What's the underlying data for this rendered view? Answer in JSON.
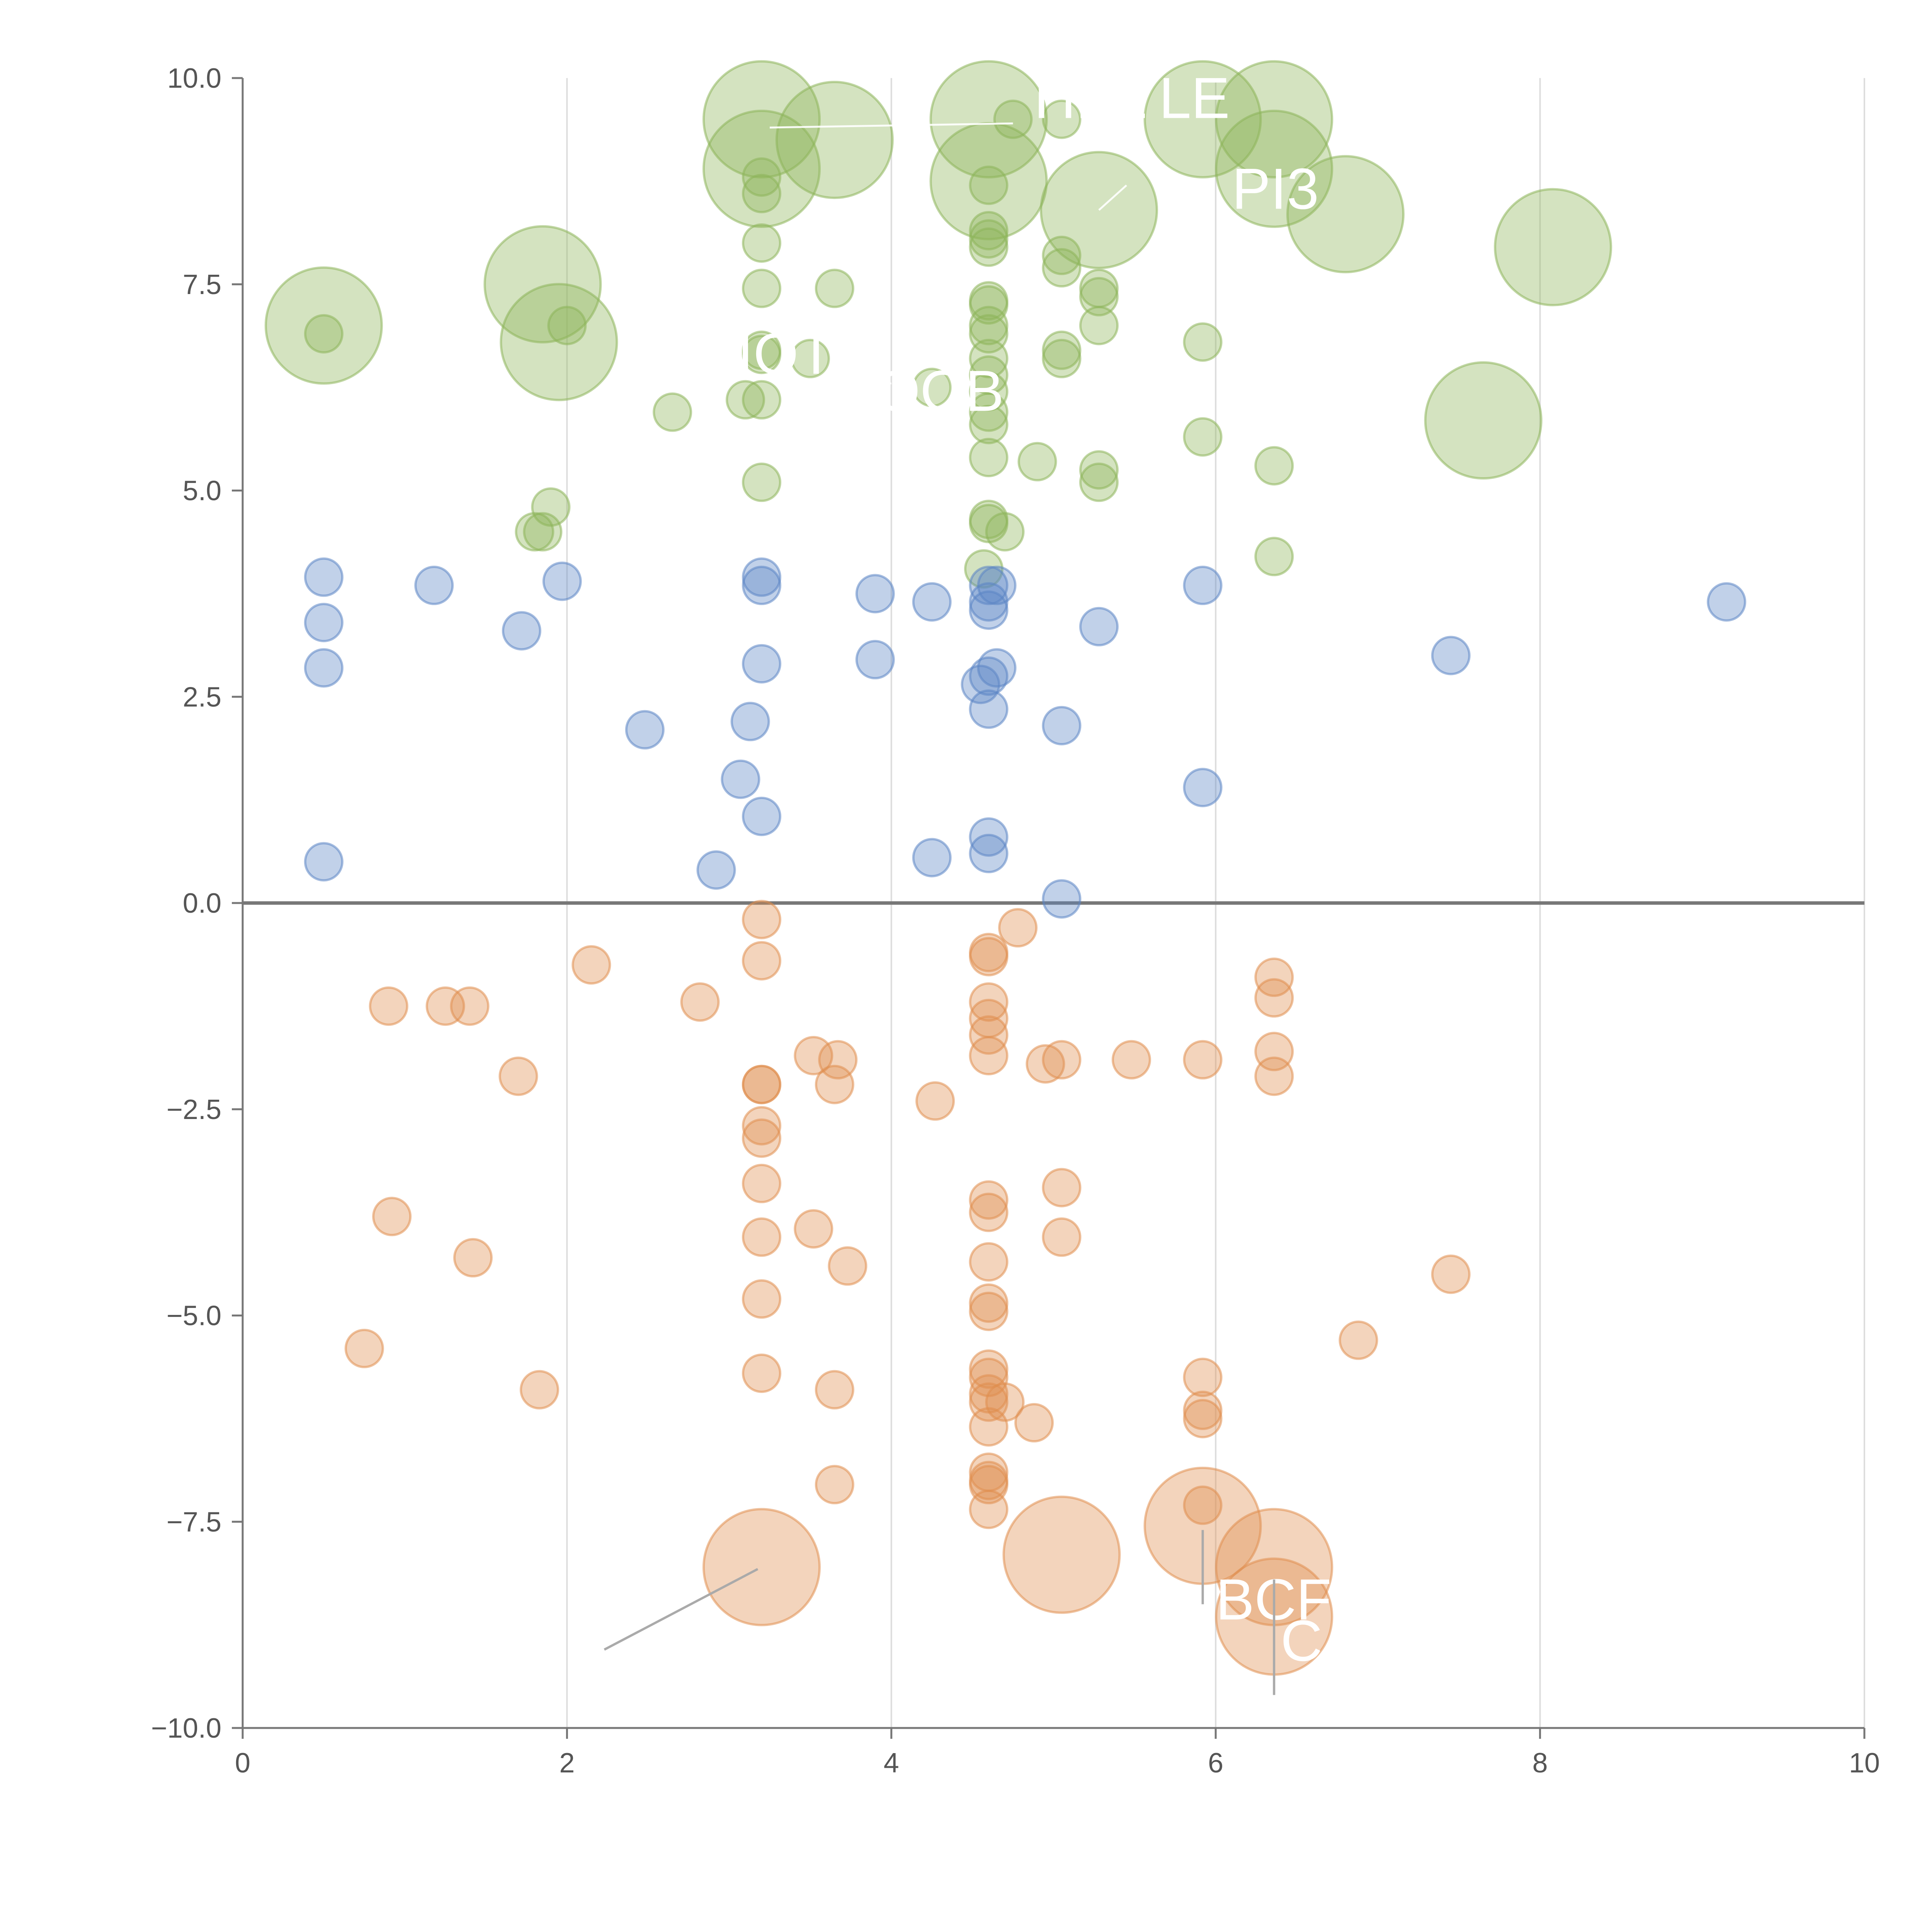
{
  "chart_data": {
    "type": "scatter",
    "subtype": "bubble",
    "title": "",
    "xlabel": "",
    "ylabel": "",
    "xlim": [
      0,
      10
    ],
    "ylim": [
      -10,
      10
    ],
    "xticks": [
      "0",
      "2",
      "4",
      "6",
      "8",
      "10"
    ],
    "yticks": [
      "−10.0",
      "−7.5",
      "−5.0",
      "−2.5",
      "0.0",
      "2.5",
      "5.0",
      "7.5",
      "10.0"
    ],
    "grid": "vertical",
    "legend": "none",
    "colors": {
      "green": "#8db55a",
      "blue": "#5b85c5",
      "orange": "#e08e4e",
      "axis": "#777777",
      "grid": "#dddddd",
      "leader_dark": "#aaaaaa",
      "label_text": "#ffffff"
    },
    "series": [
      {
        "name": "green",
        "color": "#8db55a",
        "points": [
          {
            "x": 0.5,
            "y": 7.0,
            "s": 3
          },
          {
            "x": 0.5,
            "y": 6.9,
            "s": 1
          },
          {
            "x": 1.85,
            "y": 7.5,
            "s": 3
          },
          {
            "x": 1.95,
            "y": 6.8,
            "s": 3
          },
          {
            "x": 2.0,
            "y": 7.0,
            "s": 1
          },
          {
            "x": 1.9,
            "y": 4.8,
            "s": 1
          },
          {
            "x": 1.85,
            "y": 4.5,
            "s": 1
          },
          {
            "x": 1.8,
            "y": 4.5,
            "s": 1
          },
          {
            "x": 2.65,
            "y": 5.95,
            "s": 1
          },
          {
            "x": 3.1,
            "y": 6.1,
            "s": 1
          },
          {
            "x": 3.2,
            "y": 6.1,
            "s": 1
          },
          {
            "x": 3.2,
            "y": 5.1,
            "s": 1
          },
          {
            "x": 3.2,
            "y": 9.5,
            "s": 3
          },
          {
            "x": 3.2,
            "y": 8.9,
            "s": 3
          },
          {
            "x": 3.2,
            "y": 8.8,
            "s": 1
          },
          {
            "x": 3.2,
            "y": 8.6,
            "s": 1
          },
          {
            "x": 3.2,
            "y": 8.0,
            "s": 1
          },
          {
            "x": 3.2,
            "y": 7.45,
            "s": 1
          },
          {
            "x": 3.2,
            "y": 6.7,
            "s": 1
          },
          {
            "x": 3.2,
            "y": 6.65,
            "s": 1
          },
          {
            "x": 3.5,
            "y": 6.6,
            "s": 1
          },
          {
            "x": 3.65,
            "y": 9.25,
            "s": 3
          },
          {
            "x": 3.65,
            "y": 7.45,
            "s": 1
          },
          {
            "x": 4.25,
            "y": 6.25,
            "s": 1
          },
          {
            "x": 4.6,
            "y": 9.5,
            "s": 3
          },
          {
            "x": 4.6,
            "y": 8.75,
            "s": 3
          },
          {
            "x": 4.6,
            "y": 8.7,
            "s": 1
          },
          {
            "x": 4.6,
            "y": 8.15,
            "s": 1
          },
          {
            "x": 4.6,
            "y": 8.05,
            "s": 1
          },
          {
            "x": 4.6,
            "y": 7.95,
            "s": 1
          },
          {
            "x": 4.6,
            "y": 7.3,
            "s": 1
          },
          {
            "x": 4.6,
            "y": 7.25,
            "s": 1
          },
          {
            "x": 4.6,
            "y": 7.0,
            "s": 1
          },
          {
            "x": 4.6,
            "y": 6.9,
            "s": 1
          },
          {
            "x": 4.6,
            "y": 6.6,
            "s": 1
          },
          {
            "x": 4.6,
            "y": 6.4,
            "s": 1
          },
          {
            "x": 4.6,
            "y": 6.2,
            "s": 1
          },
          {
            "x": 4.6,
            "y": 5.95,
            "s": 1
          },
          {
            "x": 4.6,
            "y": 5.8,
            "s": 1
          },
          {
            "x": 4.6,
            "y": 5.4,
            "s": 1
          },
          {
            "x": 4.6,
            "y": 4.65,
            "s": 1
          },
          {
            "x": 4.6,
            "y": 4.6,
            "s": 1
          },
          {
            "x": 4.57,
            "y": 4.05,
            "s": 1
          },
          {
            "x": 4.7,
            "y": 4.5,
            "s": 1
          },
          {
            "x": 4.9,
            "y": 5.35,
            "s": 1
          },
          {
            "x": 4.75,
            "y": 9.5,
            "s": 1
          },
          {
            "x": 5.05,
            "y": 9.5,
            "s": 1
          },
          {
            "x": 5.05,
            "y": 7.85,
            "s": 1
          },
          {
            "x": 5.05,
            "y": 7.7,
            "s": 1
          },
          {
            "x": 5.05,
            "y": 6.7,
            "s": 1
          },
          {
            "x": 5.05,
            "y": 6.6,
            "s": 1
          },
          {
            "x": 5.28,
            "y": 8.4,
            "s": 3
          },
          {
            "x": 5.28,
            "y": 7.45,
            "s": 1
          },
          {
            "x": 5.28,
            "y": 7.35,
            "s": 1
          },
          {
            "x": 5.28,
            "y": 7.0,
            "s": 1
          },
          {
            "x": 5.28,
            "y": 5.25,
            "s": 1
          },
          {
            "x": 5.28,
            "y": 5.1,
            "s": 1
          },
          {
            "x": 5.92,
            "y": 9.5,
            "s": 3
          },
          {
            "x": 5.92,
            "y": 6.8,
            "s": 1
          },
          {
            "x": 5.92,
            "y": 5.65,
            "s": 1
          },
          {
            "x": 6.36,
            "y": 9.5,
            "s": 3
          },
          {
            "x": 6.36,
            "y": 8.9,
            "s": 3
          },
          {
            "x": 6.36,
            "y": 5.3,
            "s": 1
          },
          {
            "x": 6.36,
            "y": 4.2,
            "s": 1
          },
          {
            "x": 6.8,
            "y": 8.35,
            "s": 3
          },
          {
            "x": 7.65,
            "y": 5.85,
            "s": 3
          },
          {
            "x": 8.08,
            "y": 7.95,
            "s": 3
          }
        ]
      },
      {
        "name": "blue",
        "color": "#5b85c5",
        "points": [
          {
            "x": 0.5,
            "y": 3.95,
            "s": 1
          },
          {
            "x": 0.5,
            "y": 3.4,
            "s": 1
          },
          {
            "x": 0.5,
            "y": 2.85,
            "s": 1
          },
          {
            "x": 0.5,
            "y": 0.5,
            "s": 1
          },
          {
            "x": 1.18,
            "y": 3.85,
            "s": 1
          },
          {
            "x": 1.72,
            "y": 3.3,
            "s": 1
          },
          {
            "x": 1.97,
            "y": 3.9,
            "s": 1
          },
          {
            "x": 2.48,
            "y": 2.1,
            "s": 1
          },
          {
            "x": 2.92,
            "y": 0.4,
            "s": 1
          },
          {
            "x": 3.07,
            "y": 1.5,
            "s": 1
          },
          {
            "x": 3.13,
            "y": 2.2,
            "s": 1
          },
          {
            "x": 3.2,
            "y": 3.95,
            "s": 1
          },
          {
            "x": 3.2,
            "y": 3.85,
            "s": 1
          },
          {
            "x": 3.2,
            "y": 2.9,
            "s": 1
          },
          {
            "x": 3.2,
            "y": 1.05,
            "s": 1
          },
          {
            "x": 3.9,
            "y": 3.75,
            "s": 1
          },
          {
            "x": 3.9,
            "y": 2.95,
            "s": 1
          },
          {
            "x": 4.25,
            "y": 3.65,
            "s": 1
          },
          {
            "x": 4.25,
            "y": 0.55,
            "s": 1
          },
          {
            "x": 4.55,
            "y": 2.65,
            "s": 1
          },
          {
            "x": 4.6,
            "y": 3.85,
            "s": 1
          },
          {
            "x": 4.6,
            "y": 3.65,
            "s": 1
          },
          {
            "x": 4.6,
            "y": 3.55,
            "s": 1
          },
          {
            "x": 4.65,
            "y": 3.85,
            "s": 1
          },
          {
            "x": 4.65,
            "y": 2.85,
            "s": 1
          },
          {
            "x": 4.6,
            "y": 2.75,
            "s": 1
          },
          {
            "x": 4.6,
            "y": 2.35,
            "s": 1
          },
          {
            "x": 4.6,
            "y": 0.8,
            "s": 1
          },
          {
            "x": 4.6,
            "y": 0.6,
            "s": 1
          },
          {
            "x": 5.05,
            "y": 2.15,
            "s": 1
          },
          {
            "x": 5.05,
            "y": 0.05,
            "s": 1
          },
          {
            "x": 5.28,
            "y": 3.35,
            "s": 1
          },
          {
            "x": 5.92,
            "y": 3.85,
            "s": 1
          },
          {
            "x": 5.92,
            "y": 1.4,
            "s": 1
          },
          {
            "x": 7.45,
            "y": 3.0,
            "s": 1
          },
          {
            "x": 9.15,
            "y": 3.65,
            "s": 1
          }
        ]
      },
      {
        "name": "orange",
        "color": "#e08e4e",
        "points": [
          {
            "x": 0.75,
            "y": -5.4,
            "s": 1
          },
          {
            "x": 0.9,
            "y": -1.25,
            "s": 1
          },
          {
            "x": 0.92,
            "y": -3.8,
            "s": 1
          },
          {
            "x": 1.25,
            "y": -1.25,
            "s": 1
          },
          {
            "x": 1.4,
            "y": -1.25,
            "s": 1
          },
          {
            "x": 1.42,
            "y": -4.3,
            "s": 1
          },
          {
            "x": 1.7,
            "y": -2.1,
            "s": 1
          },
          {
            "x": 1.83,
            "y": -5.9,
            "s": 1
          },
          {
            "x": 2.15,
            "y": -0.75,
            "s": 1
          },
          {
            "x": 2.82,
            "y": -1.2,
            "s": 1
          },
          {
            "x": 3.2,
            "y": -0.2,
            "s": 1
          },
          {
            "x": 3.2,
            "y": -0.7,
            "s": 1
          },
          {
            "x": 3.2,
            "y": -2.2,
            "s": 1
          },
          {
            "x": 3.2,
            "y": -2.2,
            "s": 1
          },
          {
            "x": 3.2,
            "y": -2.7,
            "s": 1
          },
          {
            "x": 3.2,
            "y": -2.85,
            "s": 1
          },
          {
            "x": 3.2,
            "y": -3.4,
            "s": 1
          },
          {
            "x": 3.2,
            "y": -4.05,
            "s": 1
          },
          {
            "x": 3.2,
            "y": -4.8,
            "s": 1
          },
          {
            "x": 3.2,
            "y": -5.7,
            "s": 1
          },
          {
            "x": 3.2,
            "y": -8.05,
            "s": 3
          },
          {
            "x": 3.52,
            "y": -1.85,
            "s": 1
          },
          {
            "x": 3.52,
            "y": -3.95,
            "s": 1
          },
          {
            "x": 3.65,
            "y": -2.2,
            "s": 1
          },
          {
            "x": 3.67,
            "y": -1.9,
            "s": 1
          },
          {
            "x": 3.65,
            "y": -5.9,
            "s": 1
          },
          {
            "x": 3.65,
            "y": -7.05,
            "s": 1
          },
          {
            "x": 3.73,
            "y": -4.4,
            "s": 1
          },
          {
            "x": 4.27,
            "y": -2.4,
            "s": 1
          },
          {
            "x": 4.6,
            "y": -0.6,
            "s": 1
          },
          {
            "x": 4.6,
            "y": -0.65,
            "s": 1
          },
          {
            "x": 4.6,
            "y": -1.2,
            "s": 1
          },
          {
            "x": 4.6,
            "y": -1.4,
            "s": 1
          },
          {
            "x": 4.6,
            "y": -1.6,
            "s": 1
          },
          {
            "x": 4.6,
            "y": -1.85,
            "s": 1
          },
          {
            "x": 4.6,
            "y": -3.6,
            "s": 1
          },
          {
            "x": 4.6,
            "y": -3.75,
            "s": 1
          },
          {
            "x": 4.6,
            "y": -4.35,
            "s": 1
          },
          {
            "x": 4.6,
            "y": -4.85,
            "s": 1
          },
          {
            "x": 4.6,
            "y": -4.95,
            "s": 1
          },
          {
            "x": 4.6,
            "y": -5.65,
            "s": 1
          },
          {
            "x": 4.6,
            "y": -5.75,
            "s": 1
          },
          {
            "x": 4.6,
            "y": -5.95,
            "s": 1
          },
          {
            "x": 4.6,
            "y": -6.05,
            "s": 1
          },
          {
            "x": 4.6,
            "y": -6.35,
            "s": 1
          },
          {
            "x": 4.6,
            "y": -6.9,
            "s": 1
          },
          {
            "x": 4.6,
            "y": -7.0,
            "s": 1
          },
          {
            "x": 4.6,
            "y": -7.05,
            "s": 1
          },
          {
            "x": 4.6,
            "y": -7.35,
            "s": 1
          },
          {
            "x": 4.7,
            "y": -6.05,
            "s": 1
          },
          {
            "x": 4.78,
            "y": -0.3,
            "s": 1
          },
          {
            "x": 4.88,
            "y": -6.3,
            "s": 1
          },
          {
            "x": 4.95,
            "y": -1.95,
            "s": 1
          },
          {
            "x": 5.05,
            "y": -1.9,
            "s": 1
          },
          {
            "x": 5.05,
            "y": -3.45,
            "s": 1
          },
          {
            "x": 5.05,
            "y": -4.05,
            "s": 1
          },
          {
            "x": 5.05,
            "y": -7.9,
            "s": 3
          },
          {
            "x": 5.48,
            "y": -1.9,
            "s": 1
          },
          {
            "x": 5.92,
            "y": -1.9,
            "s": 1
          },
          {
            "x": 5.92,
            "y": -5.75,
            "s": 1
          },
          {
            "x": 5.92,
            "y": -6.15,
            "s": 1
          },
          {
            "x": 5.92,
            "y": -6.25,
            "s": 1
          },
          {
            "x": 5.92,
            "y": -7.3,
            "s": 1
          },
          {
            "x": 5.92,
            "y": -7.55,
            "s": 3
          },
          {
            "x": 6.36,
            "y": -0.9,
            "s": 1
          },
          {
            "x": 6.36,
            "y": -1.15,
            "s": 1
          },
          {
            "x": 6.36,
            "y": -1.8,
            "s": 1
          },
          {
            "x": 6.36,
            "y": -2.1,
            "s": 1
          },
          {
            "x": 6.36,
            "y": -8.05,
            "s": 3
          },
          {
            "x": 6.36,
            "y": -8.65,
            "s": 3
          },
          {
            "x": 6.88,
            "y": -5.3,
            "s": 1
          },
          {
            "x": 7.45,
            "y": -4.5,
            "s": 1
          }
        ]
      }
    ],
    "annotations": [
      {
        "text": "HEL",
        "x": 4.88,
        "y": 9.75,
        "leader": "light",
        "lx1": 4.75,
        "ly1": 9.45,
        "lx2": 3.25,
        "ly2": 9.4
      },
      {
        "text": "LE",
        "x": 5.65,
        "y": 9.75,
        "leader": "none",
        "lx1": 0,
        "ly1": 0,
        "lx2": 0,
        "ly2": 0
      },
      {
        "text": "PI3",
        "x": 6.1,
        "y": 8.65,
        "leader": "light",
        "lx1": 5.45,
        "ly1": 8.7,
        "lx2": 5.28,
        "ly2": 8.4
      },
      {
        "text": "IOT",
        "x": 3.05,
        "y": 6.65,
        "leader": "light",
        "lx1": 3.4,
        "ly1": 6.85,
        "lx2": 3.3,
        "ly2": 6.4
      },
      {
        "text": "OOB",
        "x": 3.9,
        "y": 6.2,
        "leader": "light",
        "lx1": 3.7,
        "ly1": 6.2,
        "lx2": 4.0,
        "ly2": 6.3
      },
      {
        "text": "BCF",
        "x": 6.0,
        "y": -8.45,
        "leader": "dark",
        "lx1": 5.92,
        "ly1": -7.6,
        "lx2": 5.92,
        "ly2": -8.5
      },
      {
        "text": "C",
        "x": 6.4,
        "y": -8.95,
        "leader": "dark",
        "lx1": 6.36,
        "ly1": -8.2,
        "lx2": 6.36,
        "ly2": -9.6
      }
    ]
  }
}
